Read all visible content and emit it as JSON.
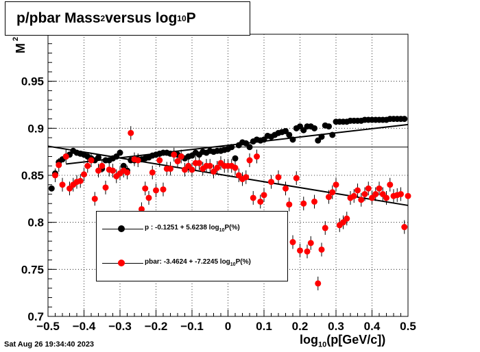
{
  "title": {
    "prefix": "p/pbar Mass",
    "sup": "2",
    "middle": " versus log",
    "sub": "10",
    "suffix": "P"
  },
  "ylabel": "M",
  "ylabel_sup": "2",
  "xlabel": {
    "prefix": "log",
    "sub": "10",
    "suffix": "(p[GeV/c])"
  },
  "datestamp": "Sat Aug 26 19:34:40 2023",
  "legend": [
    {
      "name_prefix": "p  : -0.1251 + 5.6238 log",
      "name_sub": "10",
      "name_suffix": "P(%)",
      "color": "#000000"
    },
    {
      "name_prefix": "pbar: -3.4624 + -7.2245 log",
      "name_sub": "10",
      "name_suffix": "P(%)",
      "color": "#ff0000"
    }
  ],
  "chart_data": {
    "type": "scatter",
    "xlim": [
      -0.5,
      0.5
    ],
    "ylim": [
      0.7,
      1.0
    ],
    "x_ticks": [
      -0.5,
      -0.4,
      -0.3,
      -0.2,
      -0.1,
      0,
      0.1,
      0.2,
      0.3,
      0.4,
      0.5
    ],
    "x_tick_labels": [
      "−0.5",
      "−0.4",
      "−0.3",
      "−0.2",
      "−0.1",
      "0",
      "0.1",
      "0.2",
      "0.3",
      "0.4",
      "0.5"
    ],
    "y_ticks": [
      0.7,
      0.75,
      0.8,
      0.85,
      0.9,
      0.95
    ],
    "y_tick_labels": [
      "0.7",
      "0.75",
      "0.8",
      "0.85",
      "0.9",
      "0.95"
    ],
    "grid": true,
    "reference_line": 0.88,
    "series": [
      {
        "name": "p  : -0.1251 + 5.6238 log10P(%)",
        "color": "#000000",
        "fit": [
          -0.1251,
          5.6238
        ],
        "x": [
          -0.49,
          -0.48,
          -0.47,
          -0.46,
          -0.45,
          -0.44,
          -0.43,
          -0.42,
          -0.41,
          -0.4,
          -0.39,
          -0.38,
          -0.37,
          -0.36,
          -0.35,
          -0.34,
          -0.33,
          -0.32,
          -0.31,
          -0.3,
          -0.29,
          -0.28,
          -0.27,
          -0.26,
          -0.25,
          -0.24,
          -0.23,
          -0.22,
          -0.21,
          -0.2,
          -0.19,
          -0.18,
          -0.17,
          -0.16,
          -0.15,
          -0.14,
          -0.13,
          -0.12,
          -0.11,
          -0.1,
          -0.09,
          -0.08,
          -0.07,
          -0.06,
          -0.05,
          -0.04,
          -0.03,
          -0.02,
          -0.01,
          0.0,
          0.01,
          0.02,
          0.03,
          0.04,
          0.05,
          0.06,
          0.07,
          0.08,
          0.09,
          0.1,
          0.11,
          0.12,
          0.13,
          0.14,
          0.15,
          0.16,
          0.17,
          0.18,
          0.19,
          0.2,
          0.21,
          0.22,
          0.23,
          0.24,
          0.25,
          0.26,
          0.27,
          0.28,
          0.29,
          0.3,
          0.31,
          0.32,
          0.33,
          0.34,
          0.35,
          0.36,
          0.37,
          0.38,
          0.39,
          0.4,
          0.41,
          0.42,
          0.43,
          0.44,
          0.45,
          0.46,
          0.47,
          0.48,
          0.49
        ],
        "y": [
          0.836,
          0.852,
          0.864,
          0.867,
          0.87,
          0.872,
          0.876,
          0.874,
          0.873,
          0.872,
          0.87,
          0.868,
          0.866,
          0.869,
          0.857,
          0.866,
          0.866,
          0.868,
          0.87,
          0.874,
          0.86,
          0.855,
          0.866,
          0.866,
          0.867,
          0.867,
          0.868,
          0.869,
          0.871,
          0.872,
          0.873,
          0.874,
          0.874,
          0.873,
          0.873,
          0.872,
          0.87,
          0.868,
          0.87,
          0.871,
          0.874,
          0.872,
          0.875,
          0.874,
          0.876,
          0.875,
          0.876,
          0.876,
          0.877,
          0.878,
          0.88,
          0.868,
          0.882,
          0.885,
          0.884,
          0.88,
          0.886,
          0.888,
          0.887,
          0.888,
          0.892,
          0.891,
          0.893,
          0.895,
          0.896,
          0.897,
          0.893,
          0.888,
          0.9,
          0.902,
          0.898,
          0.902,
          0.902,
          0.9,
          0.887,
          0.891,
          0.903,
          0.902,
          0.893,
          0.907,
          0.907,
          0.907,
          0.907,
          0.908,
          0.908,
          0.908,
          0.908,
          0.909,
          0.909,
          0.909,
          0.909,
          0.909,
          0.909,
          0.909,
          0.91,
          0.91,
          0.91,
          0.91,
          0.91
        ]
      },
      {
        "name": "pbar: -3.4624 + -7.2245 log10P(%)",
        "color": "#ff0000",
        "fit": [
          -3.4624,
          -7.2245
        ],
        "x": [
          -0.48,
          -0.47,
          -0.46,
          -0.45,
          -0.44,
          -0.43,
          -0.42,
          -0.41,
          -0.4,
          -0.39,
          -0.38,
          -0.37,
          -0.36,
          -0.35,
          -0.34,
          -0.33,
          -0.32,
          -0.31,
          -0.3,
          -0.29,
          -0.28,
          -0.27,
          -0.26,
          -0.25,
          -0.24,
          -0.23,
          -0.22,
          -0.21,
          -0.2,
          -0.19,
          -0.18,
          -0.17,
          -0.16,
          -0.15,
          -0.14,
          -0.13,
          -0.12,
          -0.11,
          -0.1,
          -0.09,
          -0.08,
          -0.07,
          -0.06,
          -0.05,
          -0.04,
          -0.03,
          -0.02,
          -0.01,
          0.0,
          0.01,
          0.02,
          0.03,
          0.04,
          0.05,
          0.06,
          0.07,
          0.08,
          0.09,
          0.1,
          0.11,
          0.12,
          0.13,
          0.14,
          0.15,
          0.16,
          0.17,
          0.18,
          0.19,
          0.2,
          0.21,
          0.22,
          0.23,
          0.24,
          0.25,
          0.26,
          0.27,
          0.28,
          0.29,
          0.3,
          0.31,
          0.32,
          0.33,
          0.34,
          0.35,
          0.36,
          0.37,
          0.38,
          0.39,
          0.4,
          0.41,
          0.42,
          0.43,
          0.44,
          0.45,
          0.46,
          0.47,
          0.48,
          0.49,
          0.5
        ],
        "y": [
          0.85,
          0.861,
          0.84,
          0.87,
          0.836,
          0.84,
          0.843,
          0.844,
          0.851,
          0.86,
          0.866,
          0.825,
          0.855,
          0.86,
          0.837,
          0.856,
          0.855,
          0.849,
          0.852,
          0.855,
          0.853,
          0.895,
          0.867,
          0.866,
          0.814,
          0.836,
          0.826,
          0.853,
          0.834,
          0.866,
          0.835,
          0.857,
          0.857,
          0.872,
          0.865,
          0.87,
          0.856,
          0.86,
          0.856,
          0.863,
          0.863,
          0.857,
          0.86,
          0.86,
          0.854,
          0.858,
          0.863,
          0.86,
          0.86,
          0.86,
          0.858,
          0.85,
          0.846,
          0.848,
          0.866,
          0.826,
          0.87,
          0.822,
          0.829,
          0.793,
          0.843,
          0.795,
          0.848,
          0.791,
          0.836,
          0.819,
          0.779,
          0.847,
          0.77,
          0.82,
          0.769,
          0.778,
          0.822,
          0.735,
          0.771,
          0.794,
          0.827,
          0.832,
          0.84,
          0.797,
          0.8,
          0.804,
          0.826,
          0.828,
          0.834,
          0.824,
          0.83,
          0.836,
          0.826,
          0.83,
          0.836,
          0.83,
          0.826,
          0.84,
          0.828,
          0.829,
          0.83,
          0.795,
          0.828
        ]
      }
    ]
  }
}
